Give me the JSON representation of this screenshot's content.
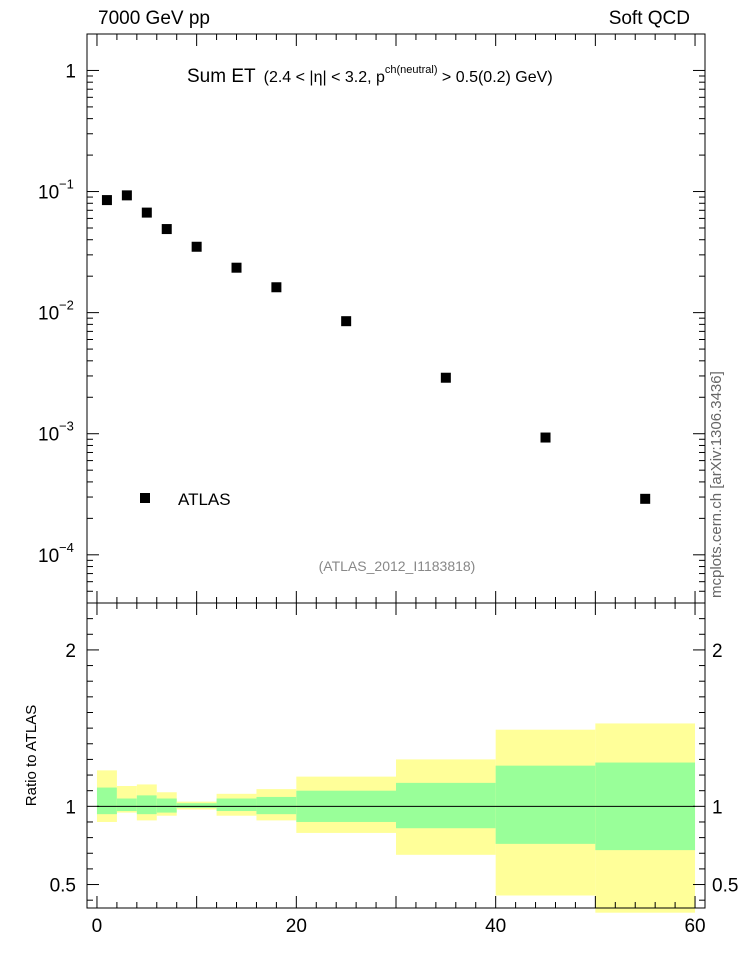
{
  "header": {
    "left": "7000 GeV pp",
    "right": "Soft QCD"
  },
  "side_label": "mcplots.cern.ch [arXiv:1306.3436]",
  "analysis_tag": "(ATLAS_2012_I1183818)",
  "colors": {
    "data": "#000000",
    "band_inner": "#99ff99",
    "band_outer": "#ffff99",
    "tag_text": "#888888",
    "side_text": "#666666"
  },
  "chart_data": [
    {
      "type": "scatter",
      "title_main": "Sum ET",
      "title_sub": "(2.4 < |η| < 3.2, p",
      "title_sup": "ch(neutral)",
      "title_tail": " > 0.5(0.2) GeV)",
      "yscale": "log",
      "xlim": [
        -1,
        61
      ],
      "ylim": [
        4e-05,
        2
      ],
      "ytick_labels": [
        {
          "v": 1,
          "text": "1"
        },
        {
          "v": 0.1,
          "base": "10",
          "exp": "−1"
        },
        {
          "v": 0.01,
          "base": "10",
          "exp": "−2"
        },
        {
          "v": 0.001,
          "base": "10",
          "exp": "−3"
        },
        {
          "v": 0.0001,
          "base": "10",
          "exp": "−4"
        }
      ],
      "legend": {
        "label": "ATLAS",
        "position": "lower-left"
      },
      "series": [
        {
          "name": "ATLAS",
          "x": [
            1,
            3,
            5,
            7,
            10,
            14,
            18,
            25,
            35,
            45,
            55
          ],
          "y": [
            0.085,
            0.093,
            0.067,
            0.049,
            0.035,
            0.0235,
            0.0162,
            0.0085,
            0.0029,
            0.00093,
            0.00029
          ]
        }
      ]
    },
    {
      "type": "area",
      "ylabel": "Ratio to ATLAS",
      "xlim": [
        -1,
        61
      ],
      "ylim": [
        0.35,
        2.3
      ],
      "xticks": [
        0,
        20,
        40,
        60
      ],
      "yticks": [
        0.5,
        1,
        2
      ],
      "reference_line": 1,
      "bins": [
        {
          "lo": 0,
          "hi": 2,
          "in_lo": 0.95,
          "in_hi": 1.12,
          "out_lo": 0.9,
          "out_hi": 1.23
        },
        {
          "lo": 2,
          "hi": 4,
          "in_lo": 0.97,
          "in_hi": 1.05,
          "out_lo": 0.96,
          "out_hi": 1.13
        },
        {
          "lo": 4,
          "hi": 6,
          "in_lo": 0.95,
          "in_hi": 1.07,
          "out_lo": 0.91,
          "out_hi": 1.14
        },
        {
          "lo": 6,
          "hi": 8,
          "in_lo": 0.96,
          "in_hi": 1.05,
          "out_lo": 0.94,
          "out_hi": 1.09
        },
        {
          "lo": 8,
          "hi": 12,
          "in_lo": 0.99,
          "in_hi": 1.02,
          "out_lo": 0.98,
          "out_hi": 1.03
        },
        {
          "lo": 12,
          "hi": 16,
          "in_lo": 0.97,
          "in_hi": 1.05,
          "out_lo": 0.94,
          "out_hi": 1.08
        },
        {
          "lo": 16,
          "hi": 20,
          "in_lo": 0.95,
          "in_hi": 1.06,
          "out_lo": 0.91,
          "out_hi": 1.11
        },
        {
          "lo": 20,
          "hi": 30,
          "in_lo": 0.9,
          "in_hi": 1.1,
          "out_lo": 0.83,
          "out_hi": 1.19
        },
        {
          "lo": 30,
          "hi": 40,
          "in_lo": 0.86,
          "in_hi": 1.15,
          "out_lo": 0.69,
          "out_hi": 1.3
        },
        {
          "lo": 40,
          "hi": 50,
          "in_lo": 0.76,
          "in_hi": 1.26,
          "out_lo": 0.43,
          "out_hi": 1.49
        },
        {
          "lo": 50,
          "hi": 60,
          "in_lo": 0.72,
          "in_hi": 1.28,
          "out_lo": 0.32,
          "out_hi": 1.53
        }
      ]
    }
  ]
}
